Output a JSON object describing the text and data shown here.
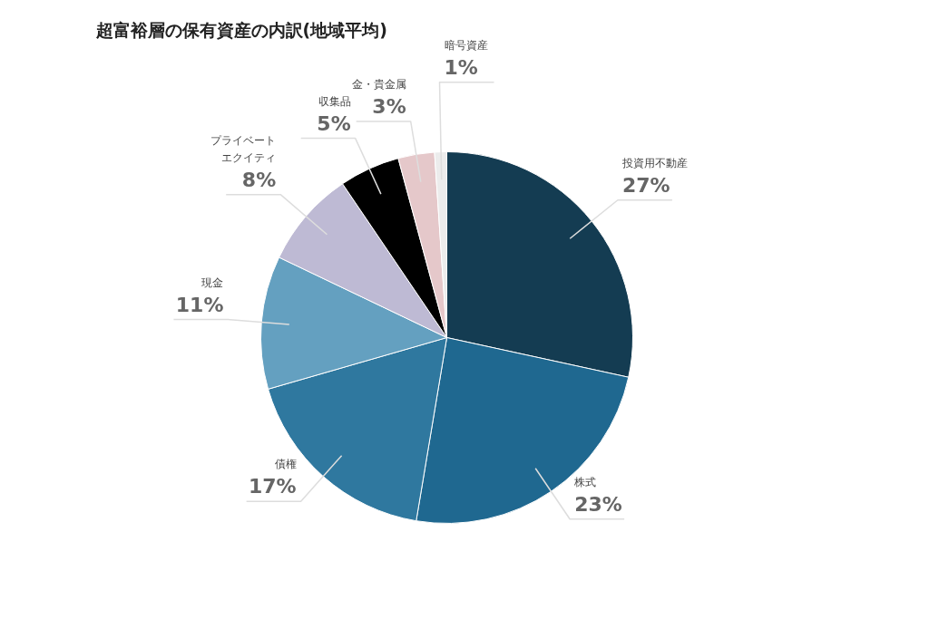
{
  "chart_data": {
    "type": "pie",
    "title": "超富裕層の保有資産の内訳(地域平均)",
    "categories": [
      "投資用不動産",
      "株式",
      "債権",
      "現金",
      "プライベートエクイティ",
      "収集品",
      "金・貴金属",
      "暗号資産"
    ],
    "values": [
      27,
      23,
      17,
      11,
      8,
      5,
      3,
      1
    ],
    "value_labels": [
      "27%",
      "23%",
      "17%",
      "11%",
      "8%",
      "5%",
      "3%",
      "1%"
    ],
    "colors": [
      "#143c52",
      "#1f6890",
      "#2f789f",
      "#64a0c0",
      "#bebad4",
      "#000000",
      "#e5c8ca",
      "#ececec"
    ]
  }
}
